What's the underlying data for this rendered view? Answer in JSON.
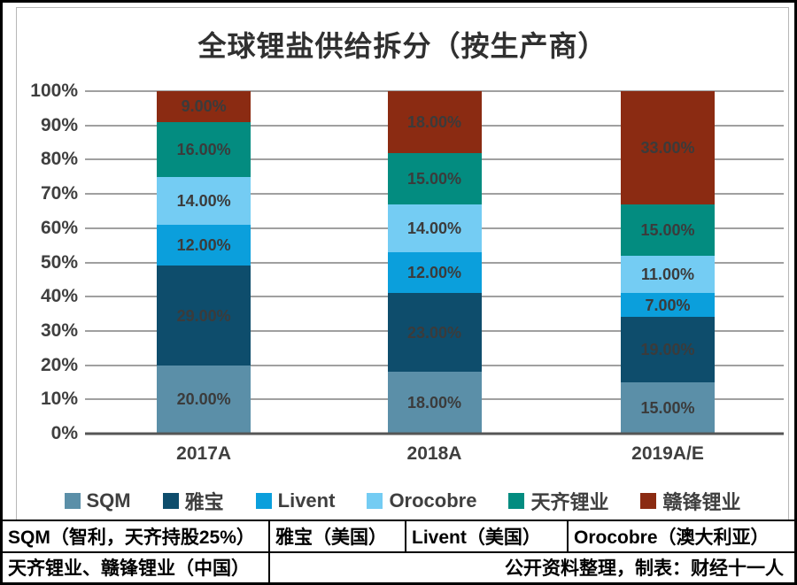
{
  "chart": {
    "title": "全球锂盐供给拆分（按生产商）",
    "chart_data": {
      "type": "bar",
      "stacked": true,
      "percent_stacked": true,
      "title": "全球锂盐供给拆分（按生产商）",
      "categories": [
        "2017A",
        "2018A",
        "2019A/E"
      ],
      "series": [
        {
          "name": "SQM",
          "color": "#5b8fa8",
          "values": [
            20,
            18,
            15
          ]
        },
        {
          "name": "雅宝",
          "color": "#0e4d6c",
          "values": [
            29,
            23,
            19
          ]
        },
        {
          "name": "Livent",
          "color": "#0b9fdc",
          "values": [
            12,
            12,
            7
          ]
        },
        {
          "name": "Orocobre",
          "color": "#74ccf3",
          "values": [
            14,
            14,
            11
          ]
        },
        {
          "name": "天齐锂业",
          "color": "#038c80",
          "values": [
            16,
            15,
            15
          ]
        },
        {
          "name": "赣锋锂业",
          "color": "#8b2b12",
          "values": [
            9,
            18,
            33
          ]
        }
      ],
      "data_labels": [
        [
          "20.00%",
          "18.00%",
          "15.00%"
        ],
        [
          "29.00%",
          "23.00%",
          "19.00%"
        ],
        [
          "12.00%",
          "12.00%",
          "7.00%"
        ],
        [
          "14.00%",
          "14.00%",
          "11.00%"
        ],
        [
          "16.00%",
          "15.00%",
          "15.00%"
        ],
        [
          "9.00%",
          "18.00%",
          "33.00%"
        ]
      ],
      "ylim": [
        0,
        100
      ],
      "yticks": [
        "0%",
        "10%",
        "20%",
        "30%",
        "40%",
        "50%",
        "60%",
        "70%",
        "80%",
        "90%",
        "100%"
      ],
      "xlabel": "",
      "ylabel": "",
      "grid": true,
      "legend_position": "bottom"
    }
  },
  "table": {
    "row1": [
      "SQM（智利，天齐持股25%）",
      "雅宝（美国）",
      "Livent（美国）",
      "Orocobre（澳大利亚）"
    ],
    "row2": [
      "天齐锂业、赣锋锂业（中国）",
      "公开资料整理，制表：财经十一人"
    ]
  },
  "colors": {
    "outer_border": "#000000",
    "chart_frame_border": "#b7b7b7",
    "gridline": "#a0a0a0",
    "axis_line": "#555555",
    "text": "#3f3f3f"
  }
}
